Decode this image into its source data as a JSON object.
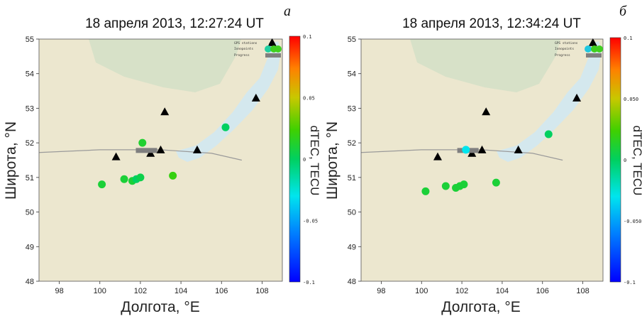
{
  "colors": {
    "land": "#ece7cf",
    "lake": "#d4e8ee",
    "tundra": "#d7e1c8",
    "station_marker": "#000000",
    "progress_marker": "#7f7f7f",
    "trajectory_line": "#9a9a9a"
  },
  "chart_data": [
    {
      "type": "scatter",
      "panel_letter": "а",
      "title": "18 апреля 2013, 12:27:24 UT",
      "xlabel": "Долгота, °E",
      "ylabel": "Широта, °N",
      "xlim": [
        97,
        109
      ],
      "ylim": [
        48,
        55
      ],
      "xticks": [
        "98",
        "100",
        "102",
        "104",
        "106",
        "108"
      ],
      "yticks": [
        "48",
        "49",
        "50",
        "51",
        "52",
        "53",
        "54",
        "55"
      ],
      "legend": {
        "placement": "top-right",
        "items": [
          "GPS stations",
          "Ionopoints",
          "Progress"
        ]
      },
      "colorbar": {
        "label": "dTEC, TECU",
        "range": [
          -0.1,
          0.1
        ],
        "ticks": [
          "0.1",
          "0.05",
          "0",
          "-0.05",
          "-0.1"
        ]
      },
      "gps_stations": [
        {
          "x": 100.8,
          "y": 51.6
        },
        {
          "x": 102.5,
          "y": 51.7
        },
        {
          "x": 103.0,
          "y": 51.8
        },
        {
          "x": 104.8,
          "y": 51.8
        },
        {
          "x": 103.2,
          "y": 52.9
        },
        {
          "x": 107.7,
          "y": 53.3
        },
        {
          "x": 108.5,
          "y": 54.9
        }
      ],
      "ionopoints": [
        {
          "x": 100.1,
          "y": 50.8,
          "dtec": 0.01
        },
        {
          "x": 101.2,
          "y": 50.95,
          "dtec": 0.01
        },
        {
          "x": 101.6,
          "y": 50.9,
          "dtec": 0.01
        },
        {
          "x": 101.8,
          "y": 50.95,
          "dtec": 0.0
        },
        {
          "x": 102.0,
          "y": 51.0,
          "dtec": 0.005
        },
        {
          "x": 103.6,
          "y": 51.05,
          "dtec": 0.02
        },
        {
          "x": 102.1,
          "y": 52.0,
          "dtec": 0.012
        },
        {
          "x": 106.2,
          "y": 52.45,
          "dtec": 0.0
        }
      ],
      "progress": {
        "x": 102.3,
        "y": 51.78
      },
      "trajectory": [
        [
          97,
          51.72
        ],
        [
          100,
          51.8
        ],
        [
          103,
          51.8
        ],
        [
          105.5,
          51.7
        ],
        [
          107,
          51.5
        ]
      ]
    },
    {
      "type": "scatter",
      "panel_letter": "б",
      "title": "18 апреля 2013, 12:34:24 UT",
      "xlabel": "Долгота, °E",
      "ylabel": "Широта, °N",
      "xlim": [
        97,
        109
      ],
      "ylim": [
        48,
        55
      ],
      "xticks": [
        "98",
        "100",
        "102",
        "104",
        "106",
        "108"
      ],
      "yticks": [
        "48",
        "49",
        "50",
        "51",
        "52",
        "53",
        "54",
        "55"
      ],
      "legend": {
        "placement": "top-right",
        "items": [
          "GPS stations",
          "Ionopoints",
          "Progress"
        ]
      },
      "colorbar": {
        "label": "dTEC, TECU",
        "range": [
          -0.1,
          0.1
        ],
        "ticks": [
          "0.1",
          "0.050",
          "0",
          "-0.050",
          "-0.1"
        ]
      },
      "gps_stations": [
        {
          "x": 100.8,
          "y": 51.6
        },
        {
          "x": 102.5,
          "y": 51.7
        },
        {
          "x": 103.0,
          "y": 51.8
        },
        {
          "x": 104.8,
          "y": 51.8
        },
        {
          "x": 103.2,
          "y": 52.9
        },
        {
          "x": 107.7,
          "y": 53.3
        },
        {
          "x": 108.5,
          "y": 54.9
        }
      ],
      "ionopoints": [
        {
          "x": 100.2,
          "y": 50.6,
          "dtec": 0.01
        },
        {
          "x": 101.2,
          "y": 50.75,
          "dtec": 0.01
        },
        {
          "x": 101.7,
          "y": 50.7,
          "dtec": 0.01
        },
        {
          "x": 101.9,
          "y": 50.75,
          "dtec": 0.01
        },
        {
          "x": 102.1,
          "y": 50.8,
          "dtec": 0.01
        },
        {
          "x": 103.7,
          "y": 50.85,
          "dtec": 0.01
        },
        {
          "x": 102.2,
          "y": 51.8,
          "dtec": -0.03
        },
        {
          "x": 106.3,
          "y": 52.25,
          "dtec": 0.0
        }
      ],
      "progress": {
        "x": 102.3,
        "y": 51.78
      },
      "trajectory": [
        [
          97,
          51.72
        ],
        [
          100,
          51.8
        ],
        [
          103,
          51.8
        ],
        [
          105.5,
          51.7
        ],
        [
          107,
          51.5
        ]
      ]
    }
  ]
}
